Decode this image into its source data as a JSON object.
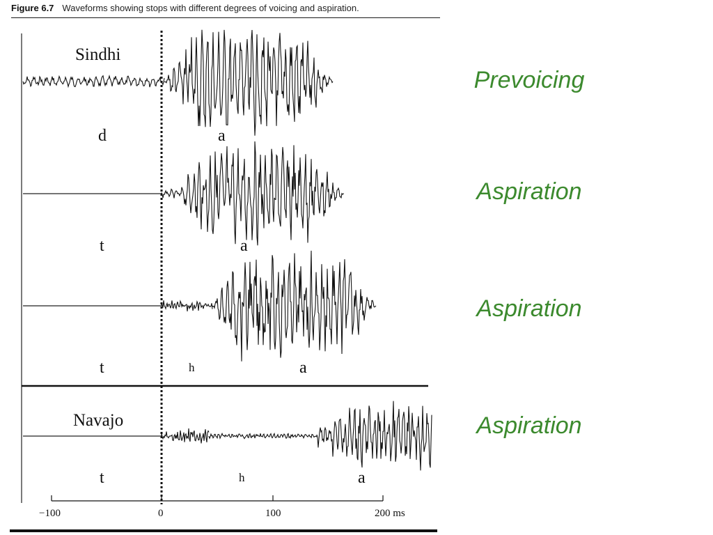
{
  "caption": {
    "number": "Figure 6.7",
    "text": "Waveforms showing stops with different degrees of voicing and aspiration."
  },
  "panels": [
    {
      "language": "Sindhi",
      "segments": [
        "d",
        "a"
      ]
    },
    {
      "segments": [
        "t",
        "a"
      ]
    },
    {
      "segments": [
        "t",
        "h",
        "a"
      ]
    },
    {
      "language": "Navajo",
      "segments": [
        "t",
        "h",
        "a"
      ]
    }
  ],
  "axis": {
    "ticks": [
      "−100",
      "0",
      "100",
      "200 ms"
    ]
  },
  "annotations": [
    "Prevoicing",
    "Aspiration",
    "Aspiration",
    "Aspiration"
  ],
  "colors": {
    "annotation": "#3c8a2e",
    "waveform": "#111111"
  }
}
